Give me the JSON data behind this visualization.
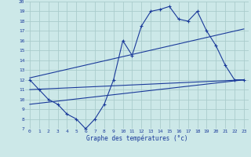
{
  "title": "Graphe des températures (°c)",
  "background_color": "#cce8e8",
  "grid_color": "#aacccc",
  "line_color": "#1a3a9a",
  "xlim": [
    -0.5,
    23.5
  ],
  "ylim": [
    7,
    20
  ],
  "xticks": [
    0,
    1,
    2,
    3,
    4,
    5,
    6,
    7,
    8,
    9,
    10,
    11,
    12,
    13,
    14,
    15,
    16,
    17,
    18,
    19,
    20,
    21,
    22,
    23
  ],
  "yticks": [
    7,
    8,
    9,
    10,
    11,
    12,
    13,
    14,
    15,
    16,
    17,
    18,
    19,
    20
  ],
  "series_main": {
    "x": [
      0,
      1,
      2,
      3,
      4,
      5,
      6,
      7,
      8,
      9,
      10,
      11,
      12,
      13,
      14,
      15,
      16,
      17,
      18,
      19,
      20,
      21,
      22,
      23
    ],
    "y": [
      12,
      11,
      10,
      9.5,
      8.5,
      8,
      7,
      8,
      9.5,
      12,
      16,
      14.5,
      17.5,
      19,
      19.2,
      19.5,
      18.2,
      18,
      19,
      17,
      15.5,
      13.5,
      12,
      12
    ]
  },
  "series_lines": [
    {
      "x": [
        0,
        23
      ],
      "y": [
        11,
        12
      ]
    },
    {
      "x": [
        0,
        23
      ],
      "y": [
        12.2,
        17.2
      ]
    },
    {
      "x": [
        0,
        23
      ],
      "y": [
        9.5,
        12
      ]
    }
  ]
}
